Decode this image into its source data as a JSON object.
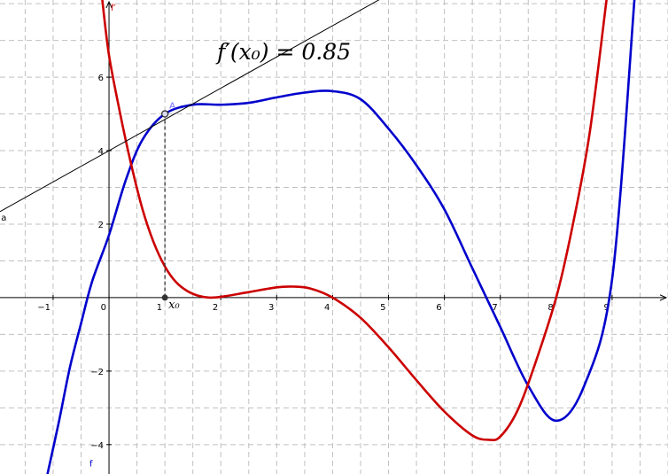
{
  "chart_data": {
    "type": "line",
    "title": "",
    "annotation_text": "f′(x₀) = 0.85",
    "xlim": [
      -1.95,
      10.0
    ],
    "ylim": [
      -4.8,
      8.1
    ],
    "grid": true,
    "x_ticks": [
      -1,
      0,
      1,
      2,
      3,
      4,
      5,
      6,
      7,
      8,
      9
    ],
    "y_ticks": [
      -4,
      -2,
      2,
      4,
      6
    ],
    "x_tick_labels": [
      "−1",
      "0",
      "1",
      "2",
      "3",
      "4",
      "5",
      "6",
      "7",
      "8",
      "9"
    ],
    "y_tick_labels": [
      "−4",
      "−2",
      "2",
      "4",
      "6"
    ],
    "x0": 1,
    "x0_label": "x₀",
    "point": {
      "name": "A",
      "x": 1,
      "y": 5.0
    },
    "series": [
      {
        "name": "f",
        "label": "f",
        "color": "#0000cc",
        "x": [
          -1.1,
          -0.9,
          -0.7,
          -0.5,
          -0.3,
          0,
          0.3,
          0.6,
          1,
          1.5,
          2,
          2.5,
          3,
          3.5,
          4,
          4.5,
          5,
          5.5,
          6,
          6.5,
          7,
          7.5,
          8,
          8.5,
          9,
          9.4
        ],
        "y": [
          -4.8,
          -3.4,
          -1.9,
          -0.7,
          0.45,
          1.7,
          3.2,
          4.3,
          5.0,
          5.25,
          5.25,
          5.3,
          5.45,
          5.58,
          5.62,
          5.4,
          4.6,
          3.6,
          2.4,
          0.8,
          -0.8,
          -2.4,
          -3.35,
          -2.4,
          0.5,
          8.1
        ]
      },
      {
        "name": "f′",
        "label": "f′",
        "color": "#cc0000",
        "x": [
          -0.12,
          0,
          0.2,
          0.4,
          0.6,
          0.8,
          1,
          1.2,
          1.4,
          1.6,
          1.8,
          2,
          2.5,
          3,
          3.3,
          3.6,
          4,
          4.5,
          5,
          5.5,
          6,
          6.5,
          6.8,
          7.0,
          7.3,
          7.6,
          8,
          8.3,
          8.6,
          8.9
        ],
        "y": [
          8.1,
          6.6,
          5.0,
          3.6,
          2.4,
          1.5,
          0.85,
          0.42,
          0.18,
          0.05,
          0.0,
          0.02,
          0.15,
          0.28,
          0.3,
          0.25,
          0.0,
          -0.55,
          -1.35,
          -2.25,
          -3.1,
          -3.75,
          -3.87,
          -3.78,
          -3.1,
          -1.9,
          0.0,
          2.0,
          4.5,
          8.1
        ]
      },
      {
        "name": "a",
        "label": "a",
        "color": "#000000",
        "x": [
          -2.0,
          10.0
        ],
        "y": [
          2.3,
          12.5
        ]
      }
    ],
    "axis_y_label": "f′",
    "x_axis_arrow": true,
    "y_axis_arrow": true
  }
}
